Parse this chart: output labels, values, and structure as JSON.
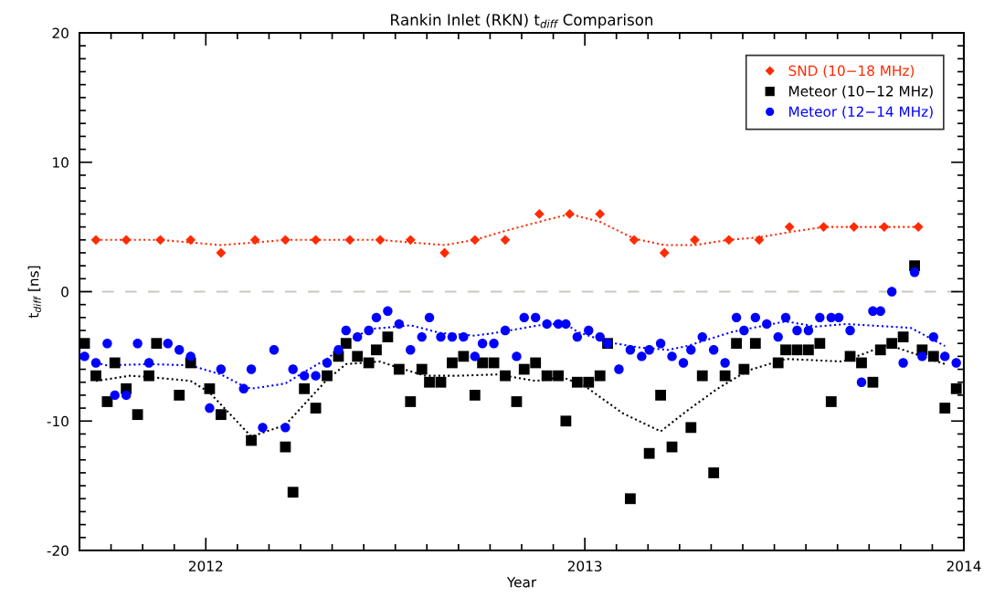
{
  "chart_data": {
    "type": "scatter",
    "title": "Rankin Inlet (RKN) t$_{diff}$ Comparison",
    "xlabel": "Year",
    "ylabel": "t$_{diff}$ [ns]",
    "xlim": [
      2011.6667,
      2014.0
    ],
    "xticks": [
      {
        "value": 2011.75,
        "label": null
      },
      {
        "value": 2011.8333,
        "label": null
      },
      {
        "value": 2011.9167,
        "label": null
      },
      {
        "value": 2012,
        "label": "2012"
      },
      {
        "value": 2012.0833,
        "label": null
      },
      {
        "value": 2012.1667,
        "label": null
      },
      {
        "value": 2012.25,
        "label": null
      },
      {
        "value": 2012.3333,
        "label": null
      },
      {
        "value": 2012.4167,
        "label": null
      },
      {
        "value": 2012.5,
        "label": null
      },
      {
        "value": 2012.5833,
        "label": null
      },
      {
        "value": 2012.6667,
        "label": null
      },
      {
        "value": 2012.75,
        "label": null
      },
      {
        "value": 2012.8333,
        "label": null
      },
      {
        "value": 2012.9167,
        "label": null
      },
      {
        "value": 2013,
        "label": "2013"
      },
      {
        "value": 2013.0833,
        "label": null
      },
      {
        "value": 2013.1667,
        "label": null
      },
      {
        "value": 2013.25,
        "label": null
      },
      {
        "value": 2013.3333,
        "label": null
      },
      {
        "value": 2013.4167,
        "label": null
      },
      {
        "value": 2013.5,
        "label": null
      },
      {
        "value": 2013.5833,
        "label": null
      },
      {
        "value": 2013.6667,
        "label": null
      },
      {
        "value": 2013.75,
        "label": null
      },
      {
        "value": 2013.8333,
        "label": null
      },
      {
        "value": 2013.9167,
        "label": null
      },
      {
        "value": 2014,
        "label": "2014"
      }
    ],
    "ylim": [
      -20,
      20
    ],
    "yticks": [
      -20,
      {
        "value": -19,
        "label": null
      },
      {
        "value": -18,
        "label": null
      },
      {
        "value": -17,
        "label": null
      },
      {
        "value": -16,
        "label": null
      },
      {
        "value": -15,
        "label": null
      },
      {
        "value": -14,
        "label": null
      },
      {
        "value": -13,
        "label": null
      },
      {
        "value": -12,
        "label": null
      },
      {
        "value": -11,
        "label": null
      },
      -10,
      {
        "value": -9,
        "label": null
      },
      {
        "value": -8,
        "label": null
      },
      {
        "value": -7,
        "label": null
      },
      {
        "value": -6,
        "label": null
      },
      {
        "value": -5,
        "label": null
      },
      {
        "value": -4,
        "label": null
      },
      {
        "value": -3,
        "label": null
      },
      {
        "value": -2,
        "label": null
      },
      {
        "value": -1,
        "label": null
      },
      0,
      {
        "value": 1,
        "label": null
      },
      {
        "value": 2,
        "label": null
      },
      {
        "value": 3,
        "label": null
      },
      {
        "value": 4,
        "label": null
      },
      {
        "value": 5,
        "label": null
      },
      {
        "value": 6,
        "label": null
      },
      {
        "value": 7,
        "label": null
      },
      {
        "value": 8,
        "label": null
      },
      {
        "value": 9,
        "label": null
      },
      10,
      {
        "value": 11,
        "label": null
      },
      {
        "value": 12,
        "label": null
      },
      {
        "value": 13,
        "label": null
      },
      {
        "value": 14,
        "label": null
      },
      {
        "value": 15,
        "label": null
      },
      {
        "value": 16,
        "label": null
      },
      {
        "value": 17,
        "label": null
      },
      {
        "value": 18,
        "label": null
      },
      {
        "value": 19,
        "label": null
      },
      20
    ],
    "grid": false,
    "legend": "top right",
    "ref_lines": [
      {
        "axis": "y",
        "value": 0,
        "label": null,
        "color": "#c8c8c0",
        "line_style": "dashed"
      }
    ],
    "series": [
      {
        "name": "SND (10−18 MHz)",
        "color": "#ff2a00",
        "marker": "diamond",
        "x": [
          2011.71,
          2011.79,
          2011.88,
          2011.96,
          2012.04,
          2012.13,
          2012.21,
          2012.29,
          2012.38,
          2012.46,
          2012.54,
          2012.63,
          2012.71,
          2012.79,
          2012.88,
          2012.96,
          2013.04,
          2013.13,
          2013.21,
          2013.29,
          2013.38,
          2013.46,
          2013.54,
          2013.63,
          2013.71,
          2013.79,
          2013.88
        ],
        "values": [
          4,
          4,
          4,
          4,
          3,
          4,
          4,
          4,
          4,
          4,
          4,
          3,
          4,
          4,
          6,
          6,
          6,
          4,
          3,
          4,
          4,
          4,
          5,
          5,
          5,
          5,
          5
        ]
      },
      {
        "name": "Meteor (10−12 MHz)",
        "color": "#000000",
        "marker": "square",
        "x": [
          2011.68,
          2011.71,
          2011.74,
          2011.76,
          2011.79,
          2011.82,
          2011.85,
          2011.87,
          2011.93,
          2011.96,
          2012.01,
          2012.04,
          2012.12,
          2012.21,
          2012.23,
          2012.26,
          2012.29,
          2012.32,
          2012.35,
          2012.37,
          2012.4,
          2012.43,
          2012.45,
          2012.48,
          2012.51,
          2012.54,
          2012.57,
          2012.59,
          2012.62,
          2012.65,
          2012.68,
          2012.71,
          2012.73,
          2012.76,
          2012.79,
          2012.82,
          2012.84,
          2012.87,
          2012.9,
          2012.93,
          2012.95,
          2012.98,
          2013.01,
          2013.04,
          2013.06,
          2013.12,
          2013.17,
          2013.2,
          2013.23,
          2013.28,
          2013.31,
          2013.34,
          2013.37,
          2013.4,
          2013.42,
          2013.45,
          2013.51,
          2013.53,
          2013.56,
          2013.59,
          2013.62,
          2013.65,
          2013.7,
          2013.73,
          2013.76,
          2013.78,
          2013.81,
          2013.84,
          2013.87,
          2013.89,
          2013.92,
          2013.95,
          2013.98
        ],
        "values": [
          -4,
          -6.5,
          -8.5,
          -5.5,
          -7.5,
          -9.5,
          -6.5,
          -4,
          -8,
          -5.5,
          -7.5,
          -9.5,
          -11.5,
          -12,
          -15.5,
          -7.5,
          -9,
          -6.5,
          -5,
          -4,
          -5,
          -5.5,
          -4.5,
          -3.5,
          -6,
          -8.5,
          -6,
          -7,
          -7,
          -5.5,
          -5,
          -8,
          -5.5,
          -5.5,
          -6.5,
          -8.5,
          -6,
          -5.5,
          -6.5,
          -6.5,
          -10,
          -7,
          -7,
          -6.5,
          -4,
          -16,
          -12.5,
          -8,
          -12,
          -10.5,
          -6.5,
          -14,
          -6.5,
          -4,
          -6,
          -4,
          -5.5,
          -4.5,
          -4.5,
          -4.5,
          -4,
          -8.5,
          -5,
          -5.5,
          -7,
          -4.5,
          -4,
          -3.5,
          2,
          -4.5,
          -5,
          -9,
          -7.5
        ]
      },
      {
        "name": "Meteor (12−14 MHz)",
        "color": "#0000ff",
        "marker": "circle",
        "x": [
          2011.68,
          2011.71,
          2011.74,
          2011.76,
          2011.79,
          2011.82,
          2011.85,
          2011.9,
          2011.93,
          2011.96,
          2012.01,
          2012.04,
          2012.1,
          2012.12,
          2012.15,
          2012.18,
          2012.21,
          2012.23,
          2012.26,
          2012.29,
          2012.32,
          2012.35,
          2012.37,
          2012.4,
          2012.43,
          2012.45,
          2012.48,
          2012.51,
          2012.54,
          2012.57,
          2012.59,
          2012.62,
          2012.65,
          2012.68,
          2012.71,
          2012.73,
          2012.76,
          2012.79,
          2012.82,
          2012.84,
          2012.87,
          2012.9,
          2012.93,
          2012.95,
          2012.98,
          2013.01,
          2013.04,
          2013.06,
          2013.09,
          2013.12,
          2013.15,
          2013.17,
          2013.2,
          2013.23,
          2013.26,
          2013.28,
          2013.31,
          2013.34,
          2013.37,
          2013.4,
          2013.42,
          2013.45,
          2013.48,
          2013.51,
          2013.53,
          2013.56,
          2013.59,
          2013.62,
          2013.65,
          2013.67,
          2013.7,
          2013.73,
          2013.76,
          2013.78,
          2013.81,
          2013.84,
          2013.87,
          2013.89,
          2013.92,
          2013.95,
          2013.98
        ],
        "values": [
          -5,
          -5.5,
          -4,
          -8,
          -8,
          -4,
          -5.5,
          -4,
          -4.5,
          -5,
          -9,
          -6,
          -7.5,
          -6,
          -10.5,
          -4.5,
          -10.5,
          -6,
          -6.5,
          -6.5,
          -5.5,
          -4.5,
          -3,
          -3.5,
          -3,
          -2,
          -1.5,
          -2.5,
          -4.5,
          -3.5,
          -2,
          -3.5,
          -3.5,
          -3.5,
          -5,
          -4,
          -4,
          -3,
          -5,
          -2,
          -2,
          -2.5,
          -2.5,
          -2.5,
          -3.5,
          -3,
          -3.5,
          -4,
          -6,
          -4.5,
          -5,
          -4.5,
          -4,
          -5,
          -5.5,
          -4.5,
          -3.5,
          -4.5,
          -5.5,
          -2,
          -3,
          -2,
          -2.5,
          -3.5,
          -2,
          -3,
          -3,
          -2,
          -2,
          -2,
          -3,
          -7,
          -1.5,
          -1.5,
          0,
          -5.5,
          1.5,
          -5,
          -3.5,
          -5,
          -5.5
        ]
      },
      {
        "type": "line",
        "color": "#ff2a00",
        "marker": "none",
        "line_style": "dotted",
        "x": [
          2011.71,
          2011.79,
          2011.88,
          2011.96,
          2012.04,
          2012.13,
          2012.21,
          2012.29,
          2012.38,
          2012.46,
          2012.54,
          2012.63,
          2012.71,
          2012.79,
          2012.88,
          2012.96,
          2013.04,
          2013.13,
          2013.21,
          2013.29,
          2013.38,
          2013.46,
          2013.54,
          2013.63,
          2013.71,
          2013.79,
          2013.88
        ],
        "values": [
          4,
          4,
          4,
          3.8,
          3.6,
          3.8,
          4,
          4,
          4,
          4,
          3.8,
          3.6,
          4,
          4.7,
          5.4,
          6,
          5.4,
          4.1,
          3.6,
          3.6,
          4,
          4.2,
          4.6,
          5,
          5,
          5,
          5
        ]
      },
      {
        "type": "line",
        "color": "#000000",
        "marker": "none",
        "line_style": "dotted",
        "x": [
          2011.71,
          2011.8,
          2011.85,
          2011.96,
          2012.01,
          2012.12,
          2012.21,
          2012.26,
          2012.32,
          2012.37,
          2012.46,
          2012.5,
          2012.58,
          2012.66,
          2012.77,
          2012.87,
          2012.94,
          2013.0,
          2013.1,
          2013.2,
          2013.27,
          2013.35,
          2013.43,
          2013.53,
          2013.68,
          2013.8,
          2013.89,
          2013.95
        ],
        "values": [
          -6.9,
          -6.5,
          -6.6,
          -6.9,
          -7.8,
          -11.2,
          -10.3,
          -8.7,
          -6.8,
          -5.6,
          -5.4,
          -5.8,
          -6.5,
          -6.5,
          -6.4,
          -6.9,
          -6.6,
          -7.3,
          -9.4,
          -10.8,
          -9.2,
          -7.5,
          -6.1,
          -5.2,
          -5.4,
          -4.1,
          -5.0,
          -5.6
        ]
      },
      {
        "type": "line",
        "color": "#0000ff",
        "marker": "none",
        "line_style": "dotted",
        "x": [
          2011.71,
          2011.74,
          2011.85,
          2011.96,
          2012.04,
          2012.1,
          2012.12,
          2012.21,
          2012.26,
          2012.32,
          2012.37,
          2012.43,
          2012.54,
          2012.62,
          2012.71,
          2012.76,
          2012.9,
          2012.95,
          2012.98,
          2013.06,
          2013.14,
          2013.22,
          2013.27,
          2013.39,
          2013.53,
          2013.61,
          2013.69,
          2013.86,
          2013.95
        ],
        "values": [
          -5.5,
          -5.7,
          -5.6,
          -5.7,
          -6.4,
          -7.3,
          -7.5,
          -7.1,
          -6.2,
          -5.2,
          -4.0,
          -2.9,
          -2.6,
          -3.2,
          -3.4,
          -3.2,
          -2.5,
          -2.5,
          -3.1,
          -3.9,
          -4.3,
          -4.5,
          -4.2,
          -3.1,
          -2.3,
          -2.7,
          -2.5,
          -2.8,
          -4.2
        ]
      }
    ]
  }
}
